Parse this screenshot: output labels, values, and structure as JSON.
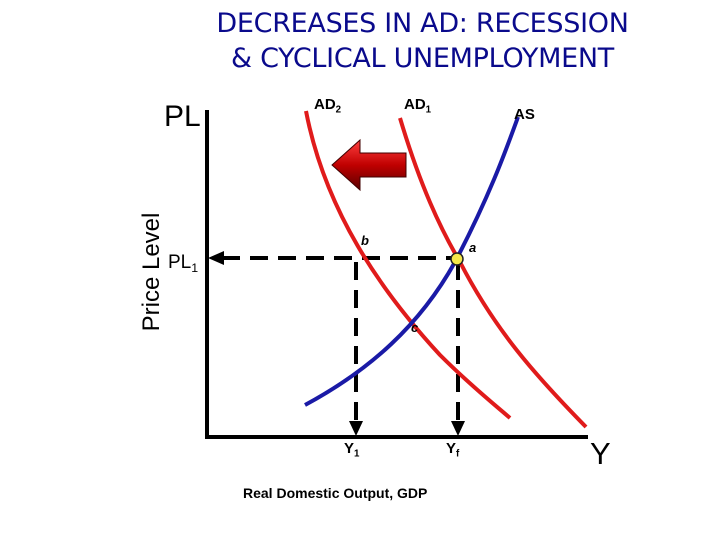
{
  "title": {
    "line1": "DECREASES IN AD: RECESSION",
    "line2": "& CYCLICAL UNEMPLOYMENT"
  },
  "axes": {
    "y_short": "PL",
    "y_long": "Price Level",
    "x_short": "Y",
    "x_long": "Real Domestic Output, GDP"
  },
  "curves": {
    "ad2": {
      "base": "AD",
      "sub": "2"
    },
    "ad1": {
      "base": "AD",
      "sub": "1"
    },
    "as": "AS"
  },
  "levels": {
    "pl1": {
      "base": "PL",
      "sub": "1"
    },
    "y1": {
      "base": "Y",
      "sub": "1"
    },
    "yf": {
      "base": "Y",
      "sub": "f"
    }
  },
  "points": {
    "a": "a",
    "b": "b",
    "c": "c"
  },
  "colors": {
    "title": "#0a0a8c",
    "ad_curves": "#e01b1b",
    "as_curve": "#1a1aa6",
    "arrow_fill": "#c00000",
    "point_a": "#f5e84a",
    "axes": "#000000"
  },
  "icons": {
    "shift": "left-arrow-icon"
  }
}
